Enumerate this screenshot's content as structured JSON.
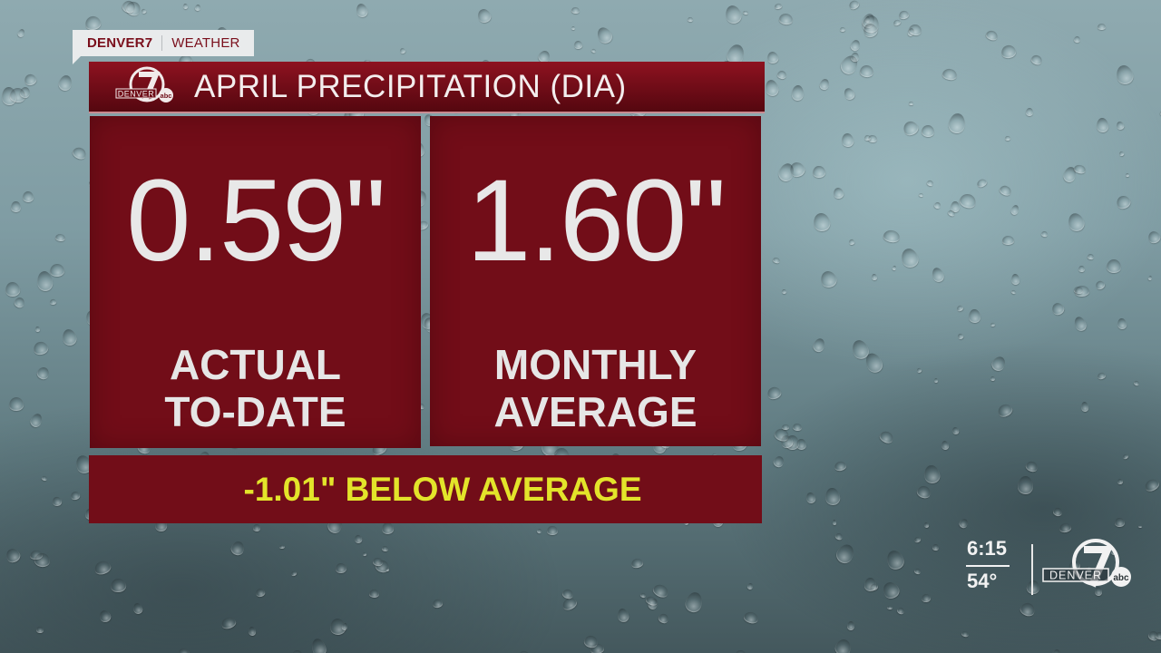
{
  "bug": {
    "brand": "DENVER7",
    "section": "WEATHER"
  },
  "header": {
    "logo_icon": "denver7-abc-logo",
    "logo_text": "DENVER",
    "logo_number": "7",
    "logo_network": "abc",
    "title": "APRIL PRECIPITATION (DIA)"
  },
  "panels": [
    {
      "value": "0.59\"",
      "label_line1": "ACTUAL",
      "label_line2": "TO-DATE"
    },
    {
      "value": "1.60\"",
      "label_line1": "MONTHLY",
      "label_line2": "AVERAGE"
    }
  ],
  "summary": {
    "text": "-1.01\" BELOW AVERAGE",
    "color": "#e3e42a"
  },
  "station": {
    "time": "6:15",
    "temperature": "54°",
    "logo_icon": "denver7-abc-logo",
    "logo_text": "DENVER",
    "logo_number": "7",
    "logo_network": "abc"
  },
  "colors": {
    "panel_red": "#720d18",
    "title_red": "#6e0c17",
    "bug_bg": "#e9ebec",
    "brand_red": "#7a0f1c",
    "value_text": "#e8e8e8"
  }
}
